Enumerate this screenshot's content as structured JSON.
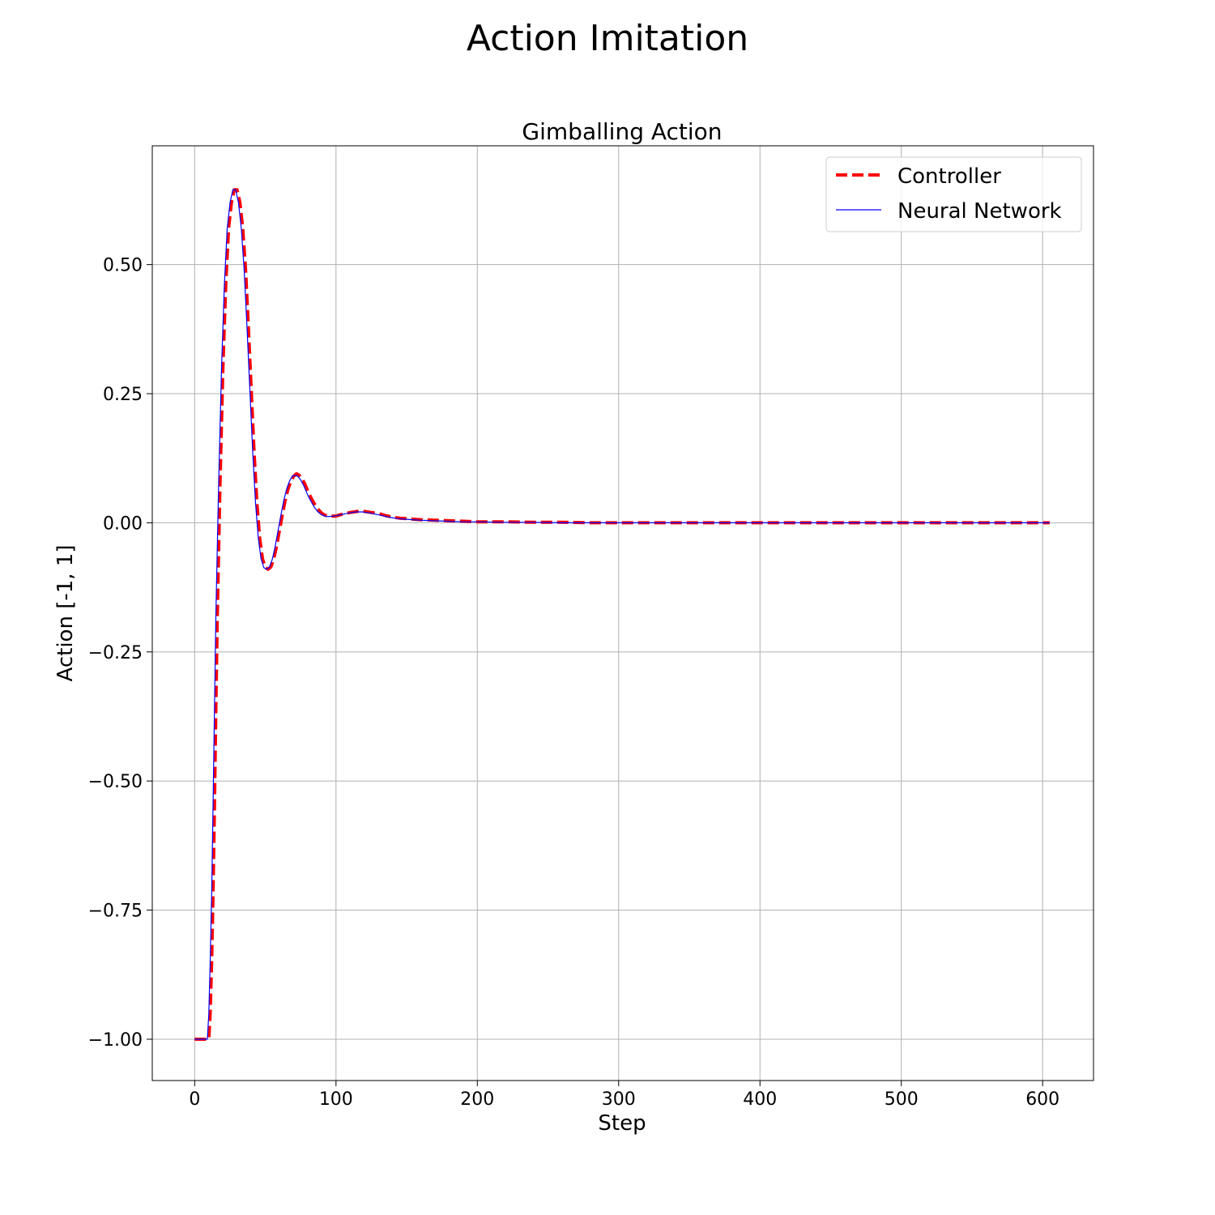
{
  "figure": {
    "suptitle": "Action Imitation"
  },
  "chart_data": {
    "type": "line",
    "title": "Gimballing Action",
    "xlabel": "Step",
    "ylabel": "Action [-1, 1]",
    "xlim": [
      -30,
      636
    ],
    "ylim": [
      -1.08,
      0.73
    ],
    "xticks": [
      0,
      100,
      200,
      300,
      400,
      500,
      600
    ],
    "xtick_labels": [
      "0",
      "100",
      "200",
      "300",
      "400",
      "500",
      "600"
    ],
    "yticks": [
      0.5,
      0.25,
      0.0,
      -0.25,
      -0.5,
      -0.75,
      -1.0
    ],
    "ytick_labels": [
      "0.50",
      "0.25",
      "0.00",
      "−0.25",
      "−0.50",
      "−0.75",
      "−1.00"
    ],
    "grid": true,
    "legend_position": "top-right",
    "series": [
      {
        "name": "Controller",
        "color": "#ff0000",
        "style": "dashed",
        "x": [
          0,
          5,
          10,
          11,
          12,
          13,
          14,
          15,
          16,
          18,
          20,
          22,
          24,
          26,
          28,
          30,
          32,
          34,
          36,
          38,
          40,
          42,
          44,
          46,
          48,
          50,
          52,
          54,
          56,
          58,
          60,
          62,
          64,
          66,
          68,
          70,
          72,
          74,
          76,
          78,
          80,
          82,
          84,
          86,
          88,
          90,
          92,
          95,
          100,
          105,
          110,
          115,
          120,
          125,
          130,
          135,
          140,
          145,
          150,
          155,
          160,
          170,
          180,
          190,
          200,
          220,
          240,
          260,
          280,
          300,
          350,
          400,
          450,
          500,
          550,
          605
        ],
        "y": [
          -1.0,
          -1.0,
          -1.0,
          -0.95,
          -0.85,
          -0.72,
          -0.55,
          -0.36,
          -0.18,
          0.08,
          0.3,
          0.46,
          0.57,
          0.62,
          0.645,
          0.645,
          0.62,
          0.57,
          0.49,
          0.38,
          0.26,
          0.14,
          0.04,
          -0.03,
          -0.07,
          -0.087,
          -0.09,
          -0.085,
          -0.07,
          -0.045,
          -0.015,
          0.015,
          0.043,
          0.065,
          0.08,
          0.09,
          0.095,
          0.092,
          0.085,
          0.075,
          0.062,
          0.05,
          0.04,
          0.031,
          0.024,
          0.018,
          0.015,
          0.013,
          0.013,
          0.017,
          0.02,
          0.022,
          0.022,
          0.02,
          0.018,
          0.014,
          0.011,
          0.009,
          0.008,
          0.007,
          0.006,
          0.005,
          0.004,
          0.003,
          0.002,
          0.002,
          0.001,
          0.001,
          0.0,
          0.0,
          0.0,
          0.0,
          0.0,
          0.0,
          0.0,
          0.0
        ]
      },
      {
        "name": "Neural Network",
        "color": "#0000ff",
        "style": "solid",
        "x": [
          0,
          5,
          9,
          10,
          11,
          12,
          13,
          14,
          15,
          17,
          19,
          21,
          23,
          25,
          27,
          29,
          31,
          33,
          35,
          37,
          39,
          41,
          43,
          45,
          47,
          49,
          51,
          53,
          55,
          57,
          59,
          61,
          63,
          65,
          67,
          69,
          71,
          73,
          75,
          77,
          79,
          81,
          83,
          85,
          87,
          89,
          91,
          94,
          99,
          104,
          109,
          114,
          119,
          124,
          129,
          134,
          139,
          144,
          149,
          154,
          159,
          169,
          179,
          189,
          199,
          219,
          239,
          259,
          279,
          299,
          349,
          399,
          449,
          499,
          549,
          605
        ],
        "y": [
          -1.0,
          -1.0,
          -1.0,
          -0.95,
          -0.85,
          -0.72,
          -0.55,
          -0.36,
          -0.18,
          0.08,
          0.3,
          0.46,
          0.57,
          0.62,
          0.645,
          0.645,
          0.62,
          0.57,
          0.49,
          0.38,
          0.26,
          0.14,
          0.04,
          -0.03,
          -0.07,
          -0.087,
          -0.09,
          -0.085,
          -0.07,
          -0.045,
          -0.015,
          0.015,
          0.043,
          0.065,
          0.08,
          0.09,
          0.092,
          0.09,
          0.083,
          0.073,
          0.06,
          0.048,
          0.038,
          0.029,
          0.022,
          0.017,
          0.014,
          0.012,
          0.013,
          0.016,
          0.019,
          0.021,
          0.021,
          0.019,
          0.016,
          0.013,
          0.01,
          0.008,
          0.007,
          0.006,
          0.005,
          0.004,
          0.003,
          0.002,
          0.002,
          0.001,
          0.001,
          0.0,
          0.0,
          0.0,
          0.0,
          0.0,
          0.0,
          0.0,
          0.0,
          0.0
        ]
      }
    ]
  }
}
